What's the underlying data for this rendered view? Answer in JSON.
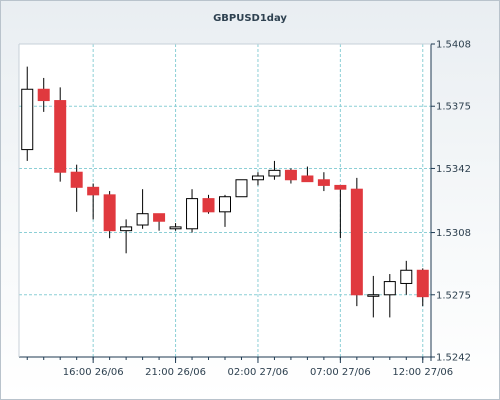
{
  "chart_data": {
    "type": "candlestick",
    "title": "GBPUSD1day",
    "ylim": [
      1.5242,
      1.5408
    ],
    "y_ticks": [
      "1.5408",
      "1.5375",
      "1.5342",
      "1.5308",
      "1.5275",
      "1.5242"
    ],
    "x_ticks": [
      {
        "label": "16:00 26/06",
        "index": 4
      },
      {
        "label": "21:00 26/06",
        "index": 9
      },
      {
        "label": "02:00 27/06",
        "index": 14
      },
      {
        "label": "07:00 27/06",
        "index": 19
      },
      {
        "label": "12:00 27/06",
        "index": 24
      }
    ],
    "candles": [
      {
        "open": 1.5352,
        "high": 1.5396,
        "low": 1.5346,
        "close": 1.5384
      },
      {
        "open": 1.5384,
        "high": 1.539,
        "low": 1.5372,
        "close": 1.5378
      },
      {
        "open": 1.5378,
        "high": 1.5385,
        "low": 1.5335,
        "close": 1.534
      },
      {
        "open": 1.534,
        "high": 1.5344,
        "low": 1.5319,
        "close": 1.5332
      },
      {
        "open": 1.5332,
        "high": 1.5334,
        "low": 1.5315,
        "close": 1.5328
      },
      {
        "open": 1.5328,
        "high": 1.533,
        "low": 1.5305,
        "close": 1.5309
      },
      {
        "open": 1.5309,
        "high": 1.5315,
        "low": 1.5297,
        "close": 1.5311
      },
      {
        "open": 1.5312,
        "high": 1.5331,
        "low": 1.531,
        "close": 1.5318
      },
      {
        "open": 1.5318,
        "high": 1.5318,
        "low": 1.5309,
        "close": 1.5314
      },
      {
        "open": 1.531,
        "high": 1.5313,
        "low": 1.5309,
        "close": 1.5311
      },
      {
        "open": 1.531,
        "high": 1.5331,
        "low": 1.5308,
        "close": 1.5326
      },
      {
        "open": 1.5326,
        "high": 1.5328,
        "low": 1.5318,
        "close": 1.5319
      },
      {
        "open": 1.5319,
        "high": 1.5328,
        "low": 1.5311,
        "close": 1.5327
      },
      {
        "open": 1.5327,
        "high": 1.5336,
        "low": 1.5327,
        "close": 1.5336
      },
      {
        "open": 1.5336,
        "high": 1.534,
        "low": 1.5333,
        "close": 1.5338
      },
      {
        "open": 1.5338,
        "high": 1.5346,
        "low": 1.5336,
        "close": 1.5341
      },
      {
        "open": 1.5341,
        "high": 1.5342,
        "low": 1.5334,
        "close": 1.5336
      },
      {
        "open": 1.5338,
        "high": 1.5343,
        "low": 1.5335,
        "close": 1.5335
      },
      {
        "open": 1.5336,
        "high": 1.534,
        "low": 1.533,
        "close": 1.5333
      },
      {
        "open": 1.5333,
        "high": 1.5333,
        "low": 1.5305,
        "close": 1.5331
      },
      {
        "open": 1.5331,
        "high": 1.5337,
        "low": 1.5269,
        "close": 1.5275
      },
      {
        "open": 1.5275,
        "high": 1.5285,
        "low": 1.5263,
        "close": 1.5275
      },
      {
        "open": 1.5275,
        "high": 1.5286,
        "low": 1.5263,
        "close": 1.5282
      },
      {
        "open": 1.5281,
        "high": 1.5293,
        "low": 1.5275,
        "close": 1.5288
      },
      {
        "open": 1.5288,
        "high": 1.5289,
        "low": 1.5269,
        "close": 1.5274
      }
    ],
    "colors": {
      "down": "#e0393e",
      "up": "#ffffff",
      "outline": "#000000",
      "grid": "#8ccfd6",
      "plot_bg": "#ffffff",
      "axis": "#1f3a52"
    },
    "grid": true
  }
}
